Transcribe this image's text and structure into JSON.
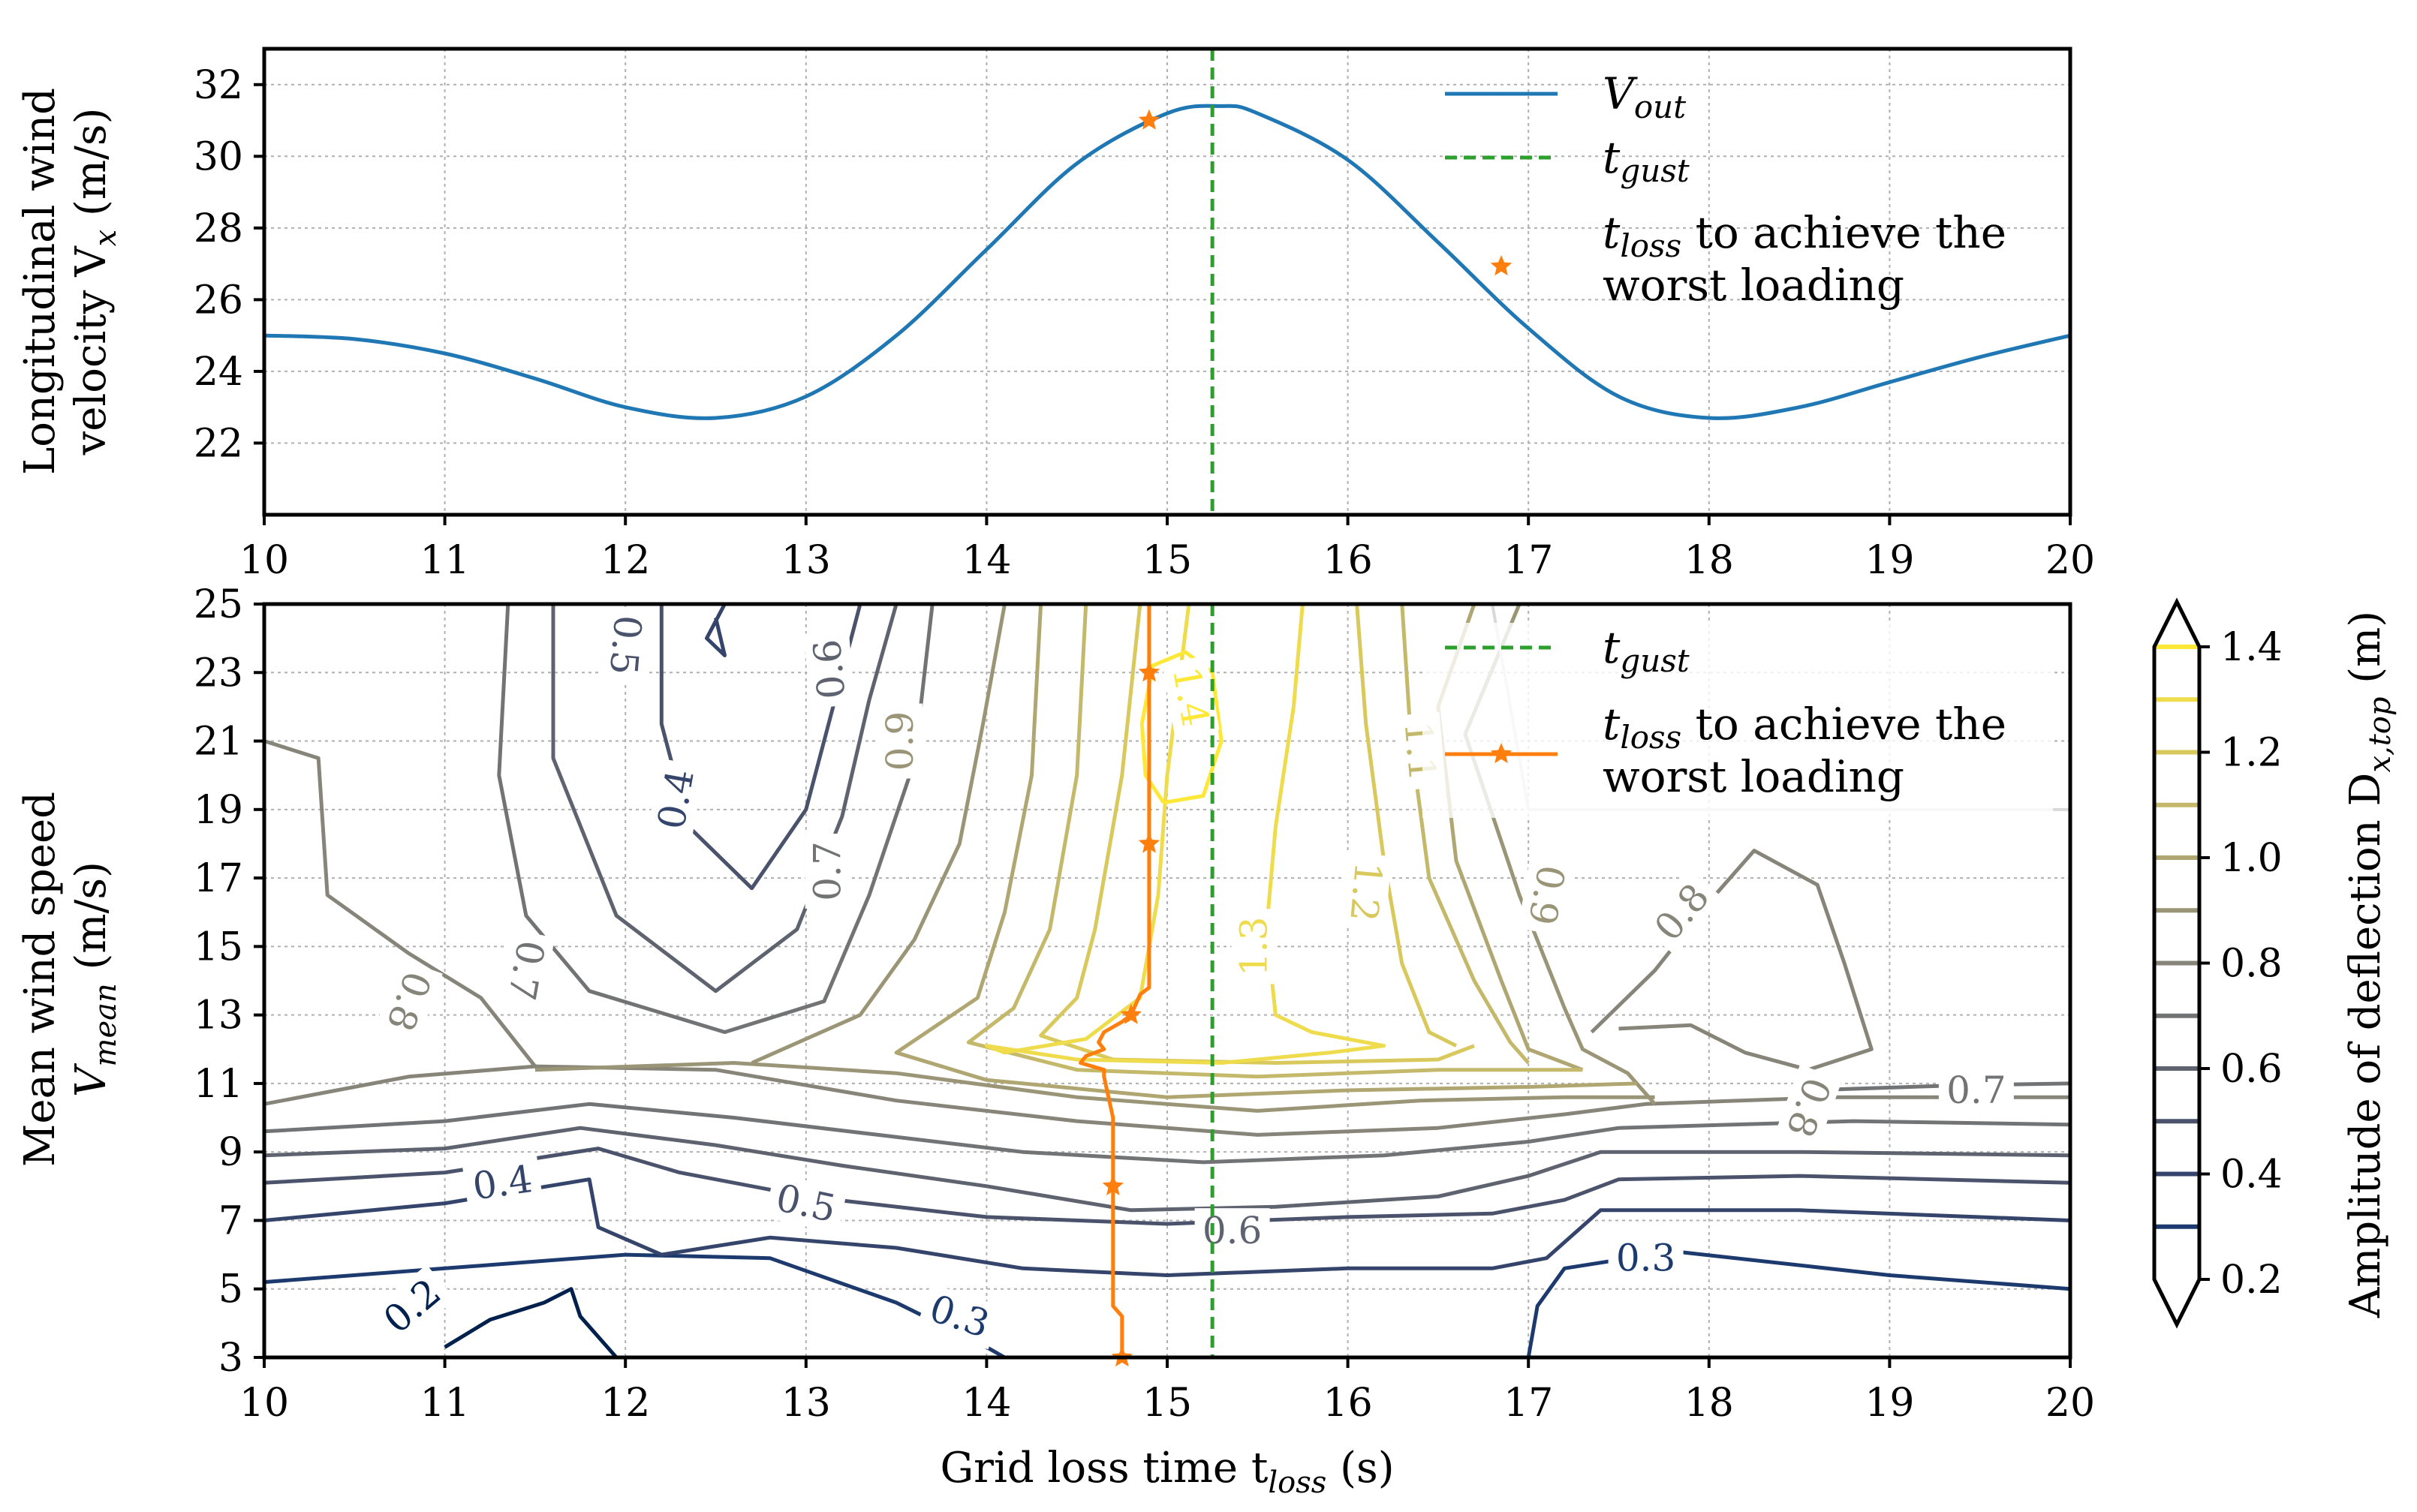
{
  "chart_data": [
    {
      "type": "line",
      "ylabel_line1": "Longitudinal wind",
      "ylabel_line2": "velocity V",
      "ylabel_sub": "x",
      "ylabel_unit": "(m/s)",
      "xlim": [
        10,
        20
      ],
      "ylim": [
        20,
        33
      ],
      "xticks": [
        "10",
        "11",
        "12",
        "13",
        "14",
        "15",
        "16",
        "17",
        "18",
        "19",
        "20"
      ],
      "yticks": [
        "22",
        "24",
        "26",
        "28",
        "30",
        "32"
      ],
      "grid": true,
      "legend_position": "top-right",
      "series": [
        {
          "name": "V_out",
          "legend_main": "V",
          "legend_sub": "out",
          "color": "#1f77b4",
          "x": [
            10.0,
            10.5,
            11.0,
            11.5,
            12.0,
            12.5,
            13.0,
            13.5,
            14.0,
            14.5,
            15.0,
            15.3,
            15.5,
            16.0,
            16.5,
            17.0,
            17.5,
            18.0,
            18.5,
            19.0,
            19.5,
            20.0
          ],
          "y": [
            25.0,
            24.9,
            24.5,
            23.8,
            23.0,
            22.7,
            23.3,
            25.0,
            27.4,
            29.8,
            31.2,
            31.4,
            31.2,
            29.9,
            27.6,
            25.2,
            23.3,
            22.7,
            23.0,
            23.7,
            24.4,
            25.0
          ]
        }
      ],
      "t_gust": {
        "x": 15.25,
        "color": "#2ca02c",
        "legend_main": "t",
        "legend_sub": "gust"
      },
      "t_loss_point": {
        "x": 14.9,
        "y": 31.0,
        "color": "#ff7f0e",
        "legend_main": "t",
        "legend_sub": "loss",
        "legend_tail": "to achieve the",
        "legend_line2": "worst loading"
      }
    },
    {
      "type": "contour",
      "xlabel": "Grid loss time t",
      "xlabel_sub": "loss",
      "xlabel_unit": "(s)",
      "ylabel_line1": "Mean wind speed",
      "ylabel_line2_main": "V",
      "ylabel_line2_sub": "mean",
      "ylabel_line2_unit": "(m/s)",
      "xlim": [
        10,
        20
      ],
      "ylim": [
        3,
        25
      ],
      "xticks": [
        "10",
        "11",
        "12",
        "13",
        "14",
        "15",
        "16",
        "17",
        "18",
        "19",
        "20"
      ],
      "yticks": [
        "3",
        "5",
        "7",
        "9",
        "11",
        "13",
        "15",
        "17",
        "19",
        "21",
        "23",
        "25"
      ],
      "grid": true,
      "legend_position": "top-right",
      "contour_levels": [
        {
          "level": 0.2,
          "color": "#00204d"
        },
        {
          "level": 0.3,
          "color": "#1d3a6e"
        },
        {
          "level": 0.4,
          "color": "#34446b"
        },
        {
          "level": 0.5,
          "color": "#4a536b"
        },
        {
          "level": 0.6,
          "color": "#5e636f"
        },
        {
          "level": 0.7,
          "color": "#727374"
        },
        {
          "level": 0.8,
          "color": "#878479"
        },
        {
          "level": 0.9,
          "color": "#9b9577"
        },
        {
          "level": 1.0,
          "color": "#afa671"
        },
        {
          "level": 1.1,
          "color": "#c4b86a"
        },
        {
          "level": 1.2,
          "color": "#d9c95d"
        },
        {
          "level": 1.3,
          "color": "#efdc4c"
        },
        {
          "level": 1.4,
          "color": "#fde737"
        }
      ],
      "contour_labels": [
        {
          "text": "0.2",
          "x": 10.82,
          "y": 4.5,
          "rot": -40,
          "color": "#00204d"
        },
        {
          "text": "0.3",
          "x": 13.85,
          "y": 4.2,
          "rot": 18,
          "color": "#1d3a6e"
        },
        {
          "text": "0.3",
          "x": 17.65,
          "y": 5.9,
          "rot": 0,
          "color": "#1d3a6e"
        },
        {
          "text": "0.4",
          "x": 11.32,
          "y": 8.1,
          "rot": -8,
          "color": "#34446b"
        },
        {
          "text": "0.4",
          "x": 12.28,
          "y": 19.3,
          "rot": -80,
          "color": "#34446b"
        },
        {
          "text": "0.5",
          "x": 13.0,
          "y": 7.5,
          "rot": 12,
          "color": "#4a536b"
        },
        {
          "text": "0.5",
          "x": 12.0,
          "y": 23.8,
          "rot": 95,
          "color": "#4a536b"
        },
        {
          "text": "0.6",
          "x": 15.36,
          "y": 6.7,
          "rot": 0,
          "color": "#5e636f"
        },
        {
          "text": "0.6",
          "x": 13.13,
          "y": 23.1,
          "rot": -95,
          "color": "#5e636f"
        },
        {
          "text": "0.7",
          "x": 11.45,
          "y": 14.3,
          "rot": 100,
          "color": "#727374"
        },
        {
          "text": "0.7",
          "x": 13.12,
          "y": 17.2,
          "rot": -90,
          "color": "#727374"
        },
        {
          "text": "0.7",
          "x": 19.48,
          "y": 10.8,
          "rot": 0,
          "color": "#727374"
        },
        {
          "text": "0.8",
          "x": 10.8,
          "y": 13.4,
          "rot": 110,
          "color": "#878479"
        },
        {
          "text": "0.8",
          "x": 17.85,
          "y": 16.0,
          "rot": -50,
          "color": "#878479"
        },
        {
          "text": "0.8",
          "x": 18.55,
          "y": 10.3,
          "rot": 110,
          "color": "#878479"
        },
        {
          "text": "0.9",
          "x": 13.52,
          "y": 21.0,
          "rot": -90,
          "color": "#9b9577"
        },
        {
          "text": "0.9",
          "x": 17.1,
          "y": 16.5,
          "rot": 100,
          "color": "#9b9577"
        },
        {
          "text": "1.1",
          "x": 16.4,
          "y": 20.7,
          "rot": 85,
          "color": "#c4b86a"
        },
        {
          "text": "1.2",
          "x": 16.1,
          "y": 16.6,
          "rot": 95,
          "color": "#d9c95d"
        },
        {
          "text": "1.3",
          "x": 15.48,
          "y": 15.0,
          "rot": -90,
          "color": "#efdc4c"
        },
        {
          "text": "1.4",
          "x": 15.13,
          "y": 22.3,
          "rot": 80,
          "color": "#fde737"
        }
      ],
      "t_gust": {
        "x": 15.25,
        "color": "#2ca02c",
        "legend_main": "t",
        "legend_sub": "gust"
      },
      "worst_loading_curve": {
        "color": "#ff7f0e",
        "legend_main": "t",
        "legend_sub": "loss",
        "legend_tail": "to achieve the",
        "legend_line2": "worst loading",
        "x": [
          14.9,
          14.9,
          14.9,
          14.9,
          14.9,
          14.9,
          14.9,
          14.9,
          14.85,
          14.8,
          14.75,
          14.65,
          14.62,
          14.65,
          14.55,
          14.52,
          14.65,
          14.65,
          14.7,
          14.7,
          14.7,
          14.7,
          14.75,
          14.75
        ],
        "y": [
          25.0,
          23.0,
          21.0,
          19.0,
          18.0,
          16.0,
          14.5,
          13.8,
          13.6,
          13.0,
          12.8,
          12.5,
          12.2,
          12.0,
          11.8,
          11.6,
          11.4,
          11.2,
          10.0,
          8.0,
          6.0,
          4.5,
          4.2,
          3.0
        ],
        "markers": [
          [
            14.9,
            23.0
          ],
          [
            14.9,
            18.0
          ],
          [
            14.8,
            13.0
          ],
          [
            14.7,
            8.0
          ],
          [
            14.75,
            3.0
          ]
        ]
      },
      "colorbar": {
        "label_main": "Amplitude of deflection D",
        "label_sub": "x,top",
        "label_unit": "(m)",
        "ticks": [
          "0.2",
          "0.4",
          "0.6",
          "0.8",
          "1.0",
          "1.2",
          "1.4"
        ],
        "range": [
          0.2,
          1.4
        ]
      }
    }
  ]
}
